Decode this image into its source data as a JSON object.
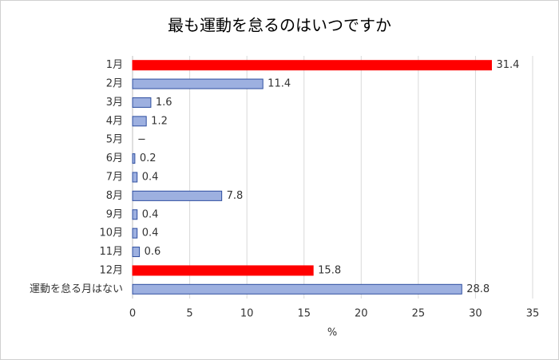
{
  "chart_data": {
    "type": "bar",
    "orientation": "horizontal",
    "title": "最も運動を怠るのはいつですか",
    "categories": [
      "1月",
      "2月",
      "3月",
      "4月",
      "5月",
      "6月",
      "7月",
      "8月",
      "9月",
      "10月",
      "11月",
      "12月",
      "運動を怠る月はない"
    ],
    "values": [
      31.4,
      11.4,
      1.6,
      1.2,
      null,
      0.2,
      0.4,
      7.8,
      0.4,
      0.4,
      0.6,
      15.8,
      28.8
    ],
    "value_labels": [
      null,
      null,
      null,
      null,
      "−",
      null,
      null,
      null,
      null,
      null,
      null,
      null,
      null
    ],
    "colors": [
      "#ff0000",
      "#9db0e0",
      "#9db0e0",
      "#9db0e0",
      "#9db0e0",
      "#9db0e0",
      "#9db0e0",
      "#9db0e0",
      "#9db0e0",
      "#9db0e0",
      "#9db0e0",
      "#ff0000",
      "#9db0e0"
    ],
    "edge_color": "#2f4fa0",
    "xlabel": "%",
    "xlim": [
      0,
      35
    ],
    "xticks": [
      0,
      5,
      10,
      15,
      20,
      25,
      30,
      35
    ],
    "grid": true
  }
}
